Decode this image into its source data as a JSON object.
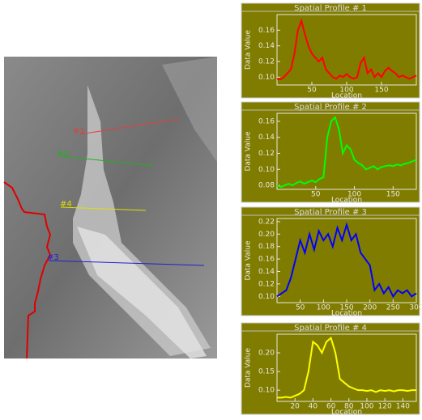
{
  "image": {
    "profile_labels": [
      "#1",
      "#2",
      "#4",
      "#3"
    ]
  },
  "chart_data": [
    {
      "type": "line",
      "title": "Spatial Profile # 1",
      "y_label": "Data Value",
      "x_label": "Location",
      "color": "#ff0000",
      "xlim": [
        0,
        200
      ],
      "xticks": [
        50,
        100,
        150
      ],
      "ylim": [
        0.09,
        0.18
      ],
      "yticks": [
        {
          "value": 0.1,
          "label": "0.10"
        },
        0.12,
        0.14,
        0.16
      ],
      "x": [
        0,
        5,
        10,
        15,
        20,
        25,
        30,
        35,
        40,
        45,
        50,
        55,
        60,
        65,
        70,
        75,
        80,
        85,
        90,
        95,
        100,
        105,
        110,
        115,
        120,
        125,
        130,
        135,
        140,
        145,
        150,
        155,
        160,
        165,
        170,
        175,
        180,
        185,
        190,
        195,
        200
      ],
      "values": [
        0.098,
        0.097,
        0.1,
        0.105,
        0.11,
        0.13,
        0.16,
        0.172,
        0.155,
        0.14,
        0.13,
        0.125,
        0.12,
        0.125,
        0.11,
        0.105,
        0.1,
        0.098,
        0.102,
        0.1,
        0.104,
        0.1,
        0.098,
        0.1,
        0.118,
        0.125,
        0.105,
        0.11,
        0.1,
        0.105,
        0.1,
        0.108,
        0.112,
        0.108,
        0.105,
        0.1,
        0.102,
        0.1,
        0.098,
        0.1,
        0.102
      ]
    },
    {
      "type": "line",
      "title": "Spatial Profile # 2",
      "y_label": "Data Value",
      "x_label": "Location",
      "color": "#00ff00",
      "xlim": [
        0,
        180
      ],
      "xticks": [
        50,
        100,
        150
      ],
      "ylim": [
        0.075,
        0.17
      ],
      "yticks": [
        0.08,
        {
          "value": 0.1,
          "label": "0.10"
        },
        0.12,
        0.14,
        0.16
      ],
      "x": [
        0,
        5,
        10,
        15,
        20,
        25,
        30,
        35,
        40,
        45,
        50,
        55,
        60,
        65,
        70,
        75,
        80,
        85,
        90,
        95,
        100,
        105,
        110,
        115,
        120,
        125,
        130,
        135,
        140,
        145,
        150,
        155,
        160,
        165,
        170,
        175,
        180
      ],
      "values": [
        0.08,
        0.078,
        0.08,
        0.082,
        0.08,
        0.083,
        0.085,
        0.082,
        0.084,
        0.086,
        0.084,
        0.088,
        0.09,
        0.14,
        0.16,
        0.165,
        0.15,
        0.12,
        0.13,
        0.125,
        0.112,
        0.108,
        0.105,
        0.1,
        0.102,
        0.104,
        0.1,
        0.103,
        0.104,
        0.105,
        0.104,
        0.106,
        0.105,
        0.107,
        0.108,
        0.11,
        0.112
      ]
    },
    {
      "type": "line",
      "title": "Spatial Profile # 3",
      "y_label": "Data Value",
      "x_label": "Location",
      "color": "#0000ff",
      "xlim": [
        0,
        300
      ],
      "xticks": [
        50,
        100,
        150,
        200,
        250,
        300
      ],
      "ylim": [
        0.09,
        0.225
      ],
      "yticks": [
        {
          "value": 0.1,
          "label": "0.10"
        },
        0.12,
        0.14,
        0.16,
        0.18,
        {
          "value": 0.2,
          "label": "0.20"
        },
        0.22
      ],
      "x": [
        0,
        10,
        20,
        30,
        40,
        50,
        60,
        70,
        80,
        90,
        100,
        110,
        120,
        130,
        140,
        150,
        160,
        170,
        180,
        190,
        200,
        210,
        220,
        230,
        240,
        250,
        260,
        270,
        280,
        290,
        300
      ],
      "values": [
        0.1,
        0.105,
        0.11,
        0.13,
        0.16,
        0.19,
        0.17,
        0.2,
        0.175,
        0.205,
        0.19,
        0.2,
        0.18,
        0.21,
        0.19,
        0.215,
        0.19,
        0.2,
        0.17,
        0.16,
        0.15,
        0.11,
        0.12,
        0.105,
        0.115,
        0.1,
        0.11,
        0.105,
        0.11,
        0.1,
        0.105
      ]
    },
    {
      "type": "line",
      "title": "Spatial Profile # 4",
      "y_label": "Data Value",
      "x_label": "Location",
      "color": "#ffff00",
      "xlim": [
        0,
        155
      ],
      "xticks": [
        20,
        40,
        60,
        80,
        100,
        120,
        140
      ],
      "ylim": [
        0.07,
        0.25
      ],
      "yticks": [
        {
          "value": 0.1,
          "label": "0.10"
        },
        0.15,
        {
          "value": 0.2,
          "label": "0.20"
        }
      ],
      "x": [
        0,
        5,
        10,
        15,
        20,
        25,
        30,
        35,
        40,
        45,
        50,
        55,
        60,
        65,
        70,
        75,
        80,
        85,
        90,
        95,
        100,
        105,
        110,
        115,
        120,
        125,
        130,
        135,
        140,
        145,
        150,
        155
      ],
      "values": [
        0.08,
        0.08,
        0.082,
        0.08,
        0.085,
        0.09,
        0.1,
        0.15,
        0.23,
        0.22,
        0.2,
        0.23,
        0.24,
        0.2,
        0.13,
        0.12,
        0.11,
        0.105,
        0.1,
        0.1,
        0.098,
        0.1,
        0.095,
        0.1,
        0.098,
        0.1,
        0.097,
        0.1,
        0.1,
        0.098,
        0.1,
        0.1
      ]
    }
  ]
}
